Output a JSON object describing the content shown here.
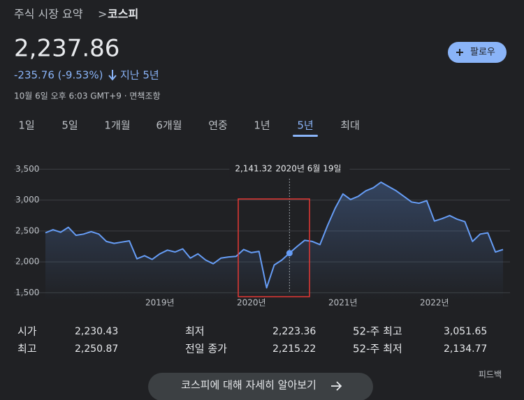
{
  "breadcrumb": {
    "parent": "주식 시장 요약",
    "separator": ">",
    "current": "코스피"
  },
  "price": "2,237.86",
  "change": {
    "value": "-235.76 (-9.53%)",
    "period": "지난 5년"
  },
  "timestamp": "10월 6일 오후 6:03 GMT+9 · 면책조항",
  "follow_button": "팔로우",
  "tabs": [
    "1일",
    "5일",
    "1개월",
    "6개월",
    "연중",
    "1년",
    "5년",
    "최대"
  ],
  "active_tab": 6,
  "chart_data": {
    "type": "line",
    "color": "#669df6",
    "grid": true,
    "categories": [
      null,
      null,
      null,
      null,
      null,
      null,
      null,
      null,
      null,
      null,
      null,
      null,
      null,
      null,
      null,
      "2019년",
      null,
      null,
      null,
      null,
      null,
      null,
      null,
      null,
      null,
      null,
      null,
      "2020년",
      null,
      null,
      null,
      null,
      null,
      null,
      null,
      null,
      null,
      null,
      null,
      "2021년",
      null,
      null,
      null,
      null,
      null,
      null,
      null,
      null,
      null,
      null,
      null,
      "2022년",
      null,
      null,
      null,
      null,
      null,
      null,
      null,
      null,
      null
    ],
    "values": [
      2470,
      2520,
      2480,
      2560,
      2430,
      2450,
      2490,
      2450,
      2330,
      2300,
      2320,
      2340,
      2050,
      2100,
      2040,
      2130,
      2190,
      2160,
      2210,
      2060,
      2130,
      2030,
      1970,
      2060,
      2080,
      2090,
      2200,
      2150,
      2170,
      1580,
      1950,
      2030,
      2141.32,
      2250,
      2350,
      2330,
      2280,
      2590,
      2870,
      3100,
      3010,
      3060,
      3150,
      3200,
      3290,
      3220,
      3150,
      3060,
      2970,
      2950,
      2990,
      2660,
      2700,
      2750,
      2690,
      2650,
      2330,
      2450,
      2470,
      2160,
      2200
    ],
    "value_labels": [
      null,
      null,
      null,
      null,
      null,
      null,
      null,
      null,
      null,
      null,
      null,
      null,
      null,
      null,
      null,
      null,
      null,
      null,
      null,
      null,
      null,
      null,
      null,
      null,
      null,
      null,
      null,
      null,
      null,
      null,
      null,
      null,
      "2,141.32",
      null,
      null,
      null,
      null,
      null,
      null,
      null,
      null,
      null,
      null,
      null,
      null,
      null,
      null,
      null,
      null,
      null,
      null,
      null,
      null,
      null,
      null,
      null,
      null,
      null,
      null,
      null,
      null
    ],
    "tooltip_date": "2020년 6월 19일",
    "ylim": [
      1380,
      3640
    ],
    "yticks": [
      {
        "value": 1500,
        "label": "1,500"
      },
      {
        "value": 2000,
        "label": "2,000"
      },
      {
        "value": 2500,
        "label": "2,500"
      },
      {
        "value": 3000,
        "label": "3,000"
      },
      {
        "value": 3500,
        "label": "3,500"
      }
    ]
  },
  "stats": [
    {
      "label": "시가",
      "value": "2,230.43"
    },
    {
      "label": "최고",
      "value": "2,250.87"
    },
    {
      "label": "최저",
      "value": "2,223.36"
    },
    {
      "label": "전일 종가",
      "value": "2,215.22"
    },
    {
      "label": "52-주 최고",
      "value": "3,051.65"
    },
    {
      "label": "52-주 최저",
      "value": "2,134.77"
    }
  ],
  "feedback": "피드백",
  "more_button": "코스피에 대해 자세히 알아보기"
}
